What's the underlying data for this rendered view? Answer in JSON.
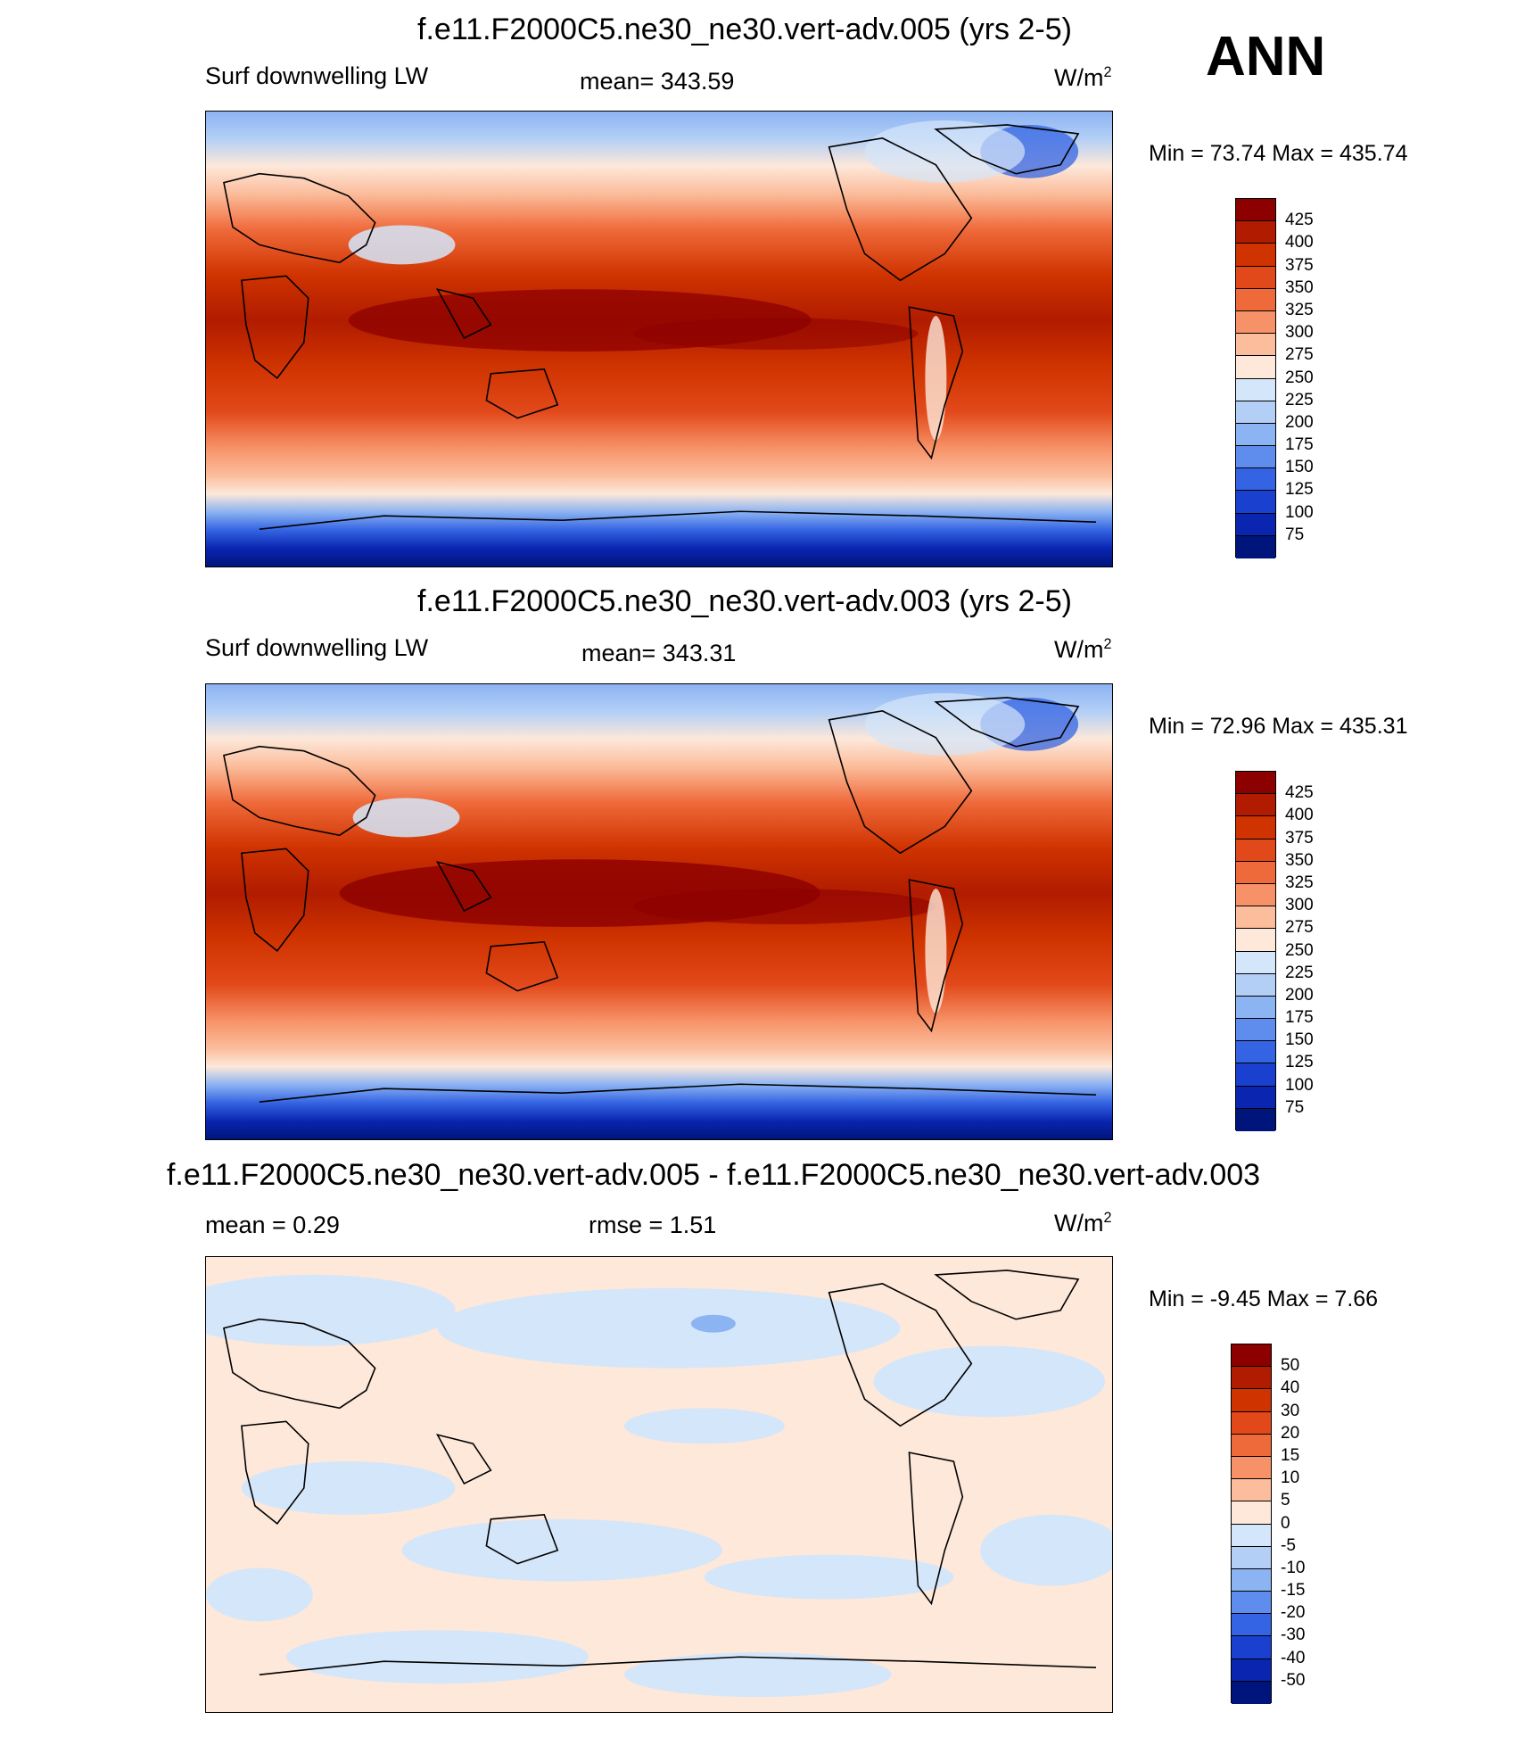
{
  "season": "ANN",
  "panels": [
    {
      "id": "case1",
      "title": "f.e11.F2000C5.ne30_ne30.vert-adv.005 (yrs 2-5)",
      "left_label": "Surf downwelling LW",
      "center_label": "mean= 343.59",
      "units": "W/m",
      "units_sup": "2",
      "minmax": "Min =  73.74 Max = 435.74",
      "colorbar_labels": [
        "425",
        "400",
        "375",
        "350",
        "325",
        "300",
        "275",
        "250",
        "225",
        "200",
        "175",
        "150",
        "125",
        "100",
        "75"
      ],
      "colorbar_colors": [
        "#8c0000",
        "#b11c00",
        "#cf3300",
        "#e2491a",
        "#ef6a3a",
        "#f79268",
        "#fbbd9c",
        "#fde8da",
        "#d4e6fa",
        "#b3cff6",
        "#8cb3f2",
        "#5f8ded",
        "#3464e3",
        "#1a40cf",
        "#0a25b0",
        "#00157c"
      ]
    },
    {
      "id": "case2",
      "title": "f.e11.F2000C5.ne30_ne30.vert-adv.003 (yrs 2-5)",
      "left_label": "Surf downwelling LW",
      "center_label": "mean= 343.31",
      "units": "W/m",
      "units_sup": "2",
      "minmax": "Min =  72.96 Max = 435.31",
      "colorbar_labels": [
        "425",
        "400",
        "375",
        "350",
        "325",
        "300",
        "275",
        "250",
        "225",
        "200",
        "175",
        "150",
        "125",
        "100",
        "75"
      ],
      "colorbar_colors": [
        "#8c0000",
        "#b11c00",
        "#cf3300",
        "#e2491a",
        "#ef6a3a",
        "#f79268",
        "#fbbd9c",
        "#fde8da",
        "#d4e6fa",
        "#b3cff6",
        "#8cb3f2",
        "#5f8ded",
        "#3464e3",
        "#1a40cf",
        "#0a25b0",
        "#00157c"
      ]
    },
    {
      "id": "diff",
      "title": "f.e11.F2000C5.ne30_ne30.vert-adv.005 - f.e11.F2000C5.ne30_ne30.vert-adv.003",
      "left_label": "mean =   0.29",
      "center_label": "rmse =   1.51",
      "units": "W/m",
      "units_sup": "2",
      "minmax": "Min =  -9.45 Max =   7.66",
      "colorbar_labels": [
        "50",
        "40",
        "30",
        "20",
        "15",
        "10",
        "5",
        "0",
        "-5",
        "-10",
        "-15",
        "-20",
        "-30",
        "-40",
        "-50"
      ],
      "colorbar_colors": [
        "#8c0000",
        "#b11c00",
        "#cf3300",
        "#e2491a",
        "#ef6a3a",
        "#f79268",
        "#fbbd9c",
        "#fde8da",
        "#d4e6fa",
        "#b3cff6",
        "#8cb3f2",
        "#5f8ded",
        "#3464e3",
        "#1a40cf",
        "#0a25b0",
        "#00157c"
      ]
    }
  ]
}
